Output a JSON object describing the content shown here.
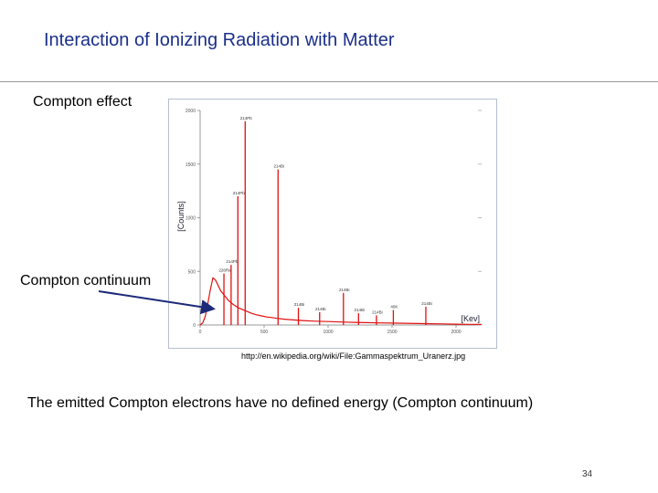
{
  "slide": {
    "title": "Interaction of Ionizing Radiation with Matter",
    "compton_effect_label": "Compton effect",
    "compton_continuum_label": "Compton continuum",
    "source_url": "http://en.wikipedia.org/wiki/File:Gammaspektrum_Uranerz.jpg",
    "caption": "The emitted Compton electrons have no defined energy (Compton continuum)",
    "page_number": "34"
  },
  "colors": {
    "title": "#1a2f8a",
    "spectrum": "#e01010",
    "arrow": "#1c2a78"
  },
  "chart_data": {
    "type": "line",
    "title": "",
    "xlabel": "[Kev]",
    "ylabel": "[Counts]",
    "xlim": [
      0,
      2200
    ],
    "ylim": [
      0,
      2000
    ],
    "x_ticks": [
      "0",
      "500",
      "1000",
      "1500",
      "2000"
    ],
    "y_ticks": [
      "0",
      "500",
      "1000",
      "1500",
      "2000"
    ],
    "continuum": {
      "x": [
        0,
        20,
        40,
        60,
        80,
        100,
        120,
        140,
        160,
        180,
        200,
        220,
        240,
        260,
        280,
        300,
        320,
        340,
        360,
        380,
        400,
        440,
        480,
        520,
        560,
        600,
        650,
        700,
        800,
        900,
        1000,
        1100,
        1200,
        1300,
        1400,
        1500,
        1600,
        1700,
        1800,
        1900,
        2000,
        2100,
        2200
      ],
      "y": [
        0,
        20,
        80,
        200,
        330,
        440,
        420,
        370,
        320,
        290,
        260,
        230,
        210,
        190,
        175,
        160,
        150,
        140,
        130,
        120,
        110,
        95,
        85,
        75,
        70,
        62,
        55,
        50,
        42,
        36,
        32,
        28,
        25,
        22,
        20,
        18,
        16,
        14,
        12,
        10,
        8,
        6,
        5
      ]
    },
    "peaks": [
      {
        "energy": 186,
        "counts": 480,
        "label": "226Ra"
      },
      {
        "energy": 242,
        "counts": 560,
        "label": "214Pb"
      },
      {
        "energy": 295,
        "counts": 1200,
        "label": "214Pb"
      },
      {
        "energy": 352,
        "counts": 1900,
        "label": "214Pb"
      },
      {
        "energy": 609,
        "counts": 1450,
        "label": "214Bi"
      },
      {
        "energy": 768,
        "counts": 160,
        "label": "214Bi"
      },
      {
        "energy": 934,
        "counts": 120,
        "label": "214Bi"
      },
      {
        "energy": 1120,
        "counts": 300,
        "label": "214Bi"
      },
      {
        "energy": 1238,
        "counts": 110,
        "label": "214Bi"
      },
      {
        "energy": 1378,
        "counts": 90,
        "label": "214Bi"
      },
      {
        "energy": 1510,
        "counts": 140,
        "label": "40K"
      },
      {
        "energy": 1764,
        "counts": 170,
        "label": "214Bi"
      }
    ]
  }
}
